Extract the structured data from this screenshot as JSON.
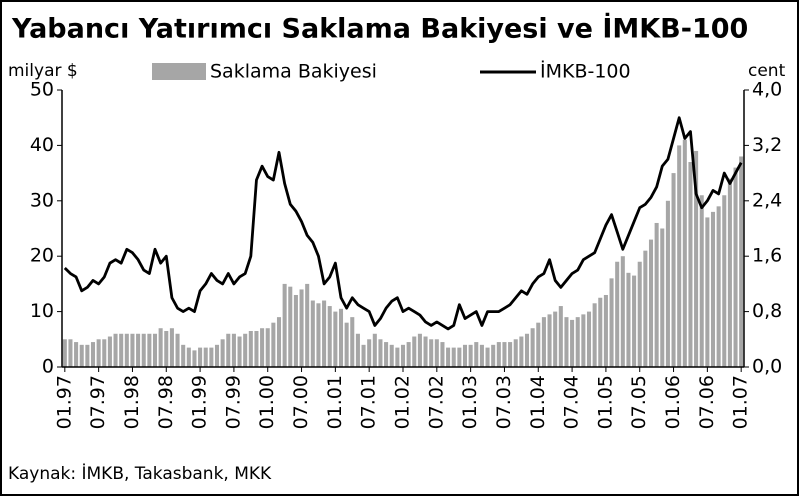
{
  "chart_data": {
    "type": "bar_line",
    "title": "Yabancı Yatırımcı Saklama Bakiyesi ve İMKB-100",
    "y_label": "milyar $",
    "y2_label": "cent",
    "source": "Kaynak: İMKB, Takasbank, MKK",
    "categories": [
      "01.97",
      null,
      null,
      null,
      null,
      null,
      "07.97",
      null,
      null,
      null,
      null,
      null,
      "01.98",
      null,
      null,
      null,
      null,
      null,
      "07.98",
      null,
      null,
      null,
      null,
      null,
      "01.99",
      null,
      null,
      null,
      null,
      null,
      "07.99",
      null,
      null,
      null,
      null,
      null,
      "01.00",
      null,
      null,
      null,
      null,
      null,
      "07.00",
      null,
      null,
      null,
      null,
      null,
      "01.01",
      null,
      null,
      null,
      null,
      null,
      "07.01",
      null,
      null,
      null,
      null,
      null,
      "01.02",
      null,
      null,
      null,
      null,
      null,
      "07.02",
      null,
      null,
      null,
      null,
      null,
      "01.03",
      null,
      null,
      null,
      null,
      null,
      "07.03",
      null,
      null,
      null,
      null,
      null,
      "01.04",
      null,
      null,
      null,
      null,
      null,
      "07.04",
      null,
      null,
      null,
      null,
      null,
      "01.05",
      null,
      null,
      null,
      null,
      null,
      "07.05",
      null,
      null,
      null,
      null,
      null,
      "01.06",
      null,
      null,
      null,
      null,
      null,
      "07.06",
      null,
      null,
      null,
      null,
      null,
      "01.07"
    ],
    "series": [
      {
        "name": "Saklama Bakiyesi",
        "color": "#a6a6a6",
        "values": [
          5,
          5,
          4.5,
          4,
          4,
          4.5,
          5,
          5,
          5.5,
          6,
          6,
          6,
          6,
          6,
          6,
          6,
          6,
          7,
          6.5,
          7,
          6,
          4,
          3.5,
          3,
          3.5,
          3.5,
          3.5,
          4,
          5,
          6,
          6,
          5.5,
          6,
          6.5,
          6.5,
          7,
          7,
          8,
          9,
          15,
          14.5,
          13,
          14,
          15,
          12,
          11.5,
          12,
          11,
          10,
          10.5,
          8,
          9,
          6,
          4,
          5,
          6,
          5,
          4.5,
          4,
          3.5,
          4,
          4.5,
          5.5,
          6,
          5.5,
          5,
          5,
          4.5,
          3.5,
          3.5,
          3.5,
          4,
          4,
          4.5,
          4,
          3.5,
          4,
          4.5,
          4.5,
          4.5,
          5,
          5.5,
          6,
          7,
          8,
          9,
          9.5,
          10,
          11,
          9,
          8.5,
          9,
          9.5,
          10,
          11.5,
          12.5,
          13,
          16,
          19,
          20,
          17,
          16.5,
          19,
          21,
          23,
          26,
          25,
          30,
          35,
          40,
          41,
          37,
          39,
          31,
          27,
          28,
          29,
          31,
          34,
          36,
          38
        ]
      },
      {
        "name": "İMKB-100",
        "color": "#000000",
        "axis": "y2",
        "values": [
          1.43,
          1.35,
          1.3,
          1.1,
          1.15,
          1.25,
          1.2,
          1.3,
          1.5,
          1.55,
          1.5,
          1.7,
          1.65,
          1.55,
          1.4,
          1.35,
          1.7,
          1.5,
          1.6,
          1.0,
          0.85,
          0.8,
          0.85,
          0.8,
          1.1,
          1.2,
          1.35,
          1.25,
          1.2,
          1.35,
          1.2,
          1.3,
          1.35,
          1.6,
          2.7,
          2.9,
          2.75,
          2.7,
          3.1,
          2.65,
          2.35,
          2.25,
          2.1,
          1.9,
          1.8,
          1.6,
          1.2,
          1.3,
          1.5,
          1.0,
          0.85,
          1.0,
          0.9,
          0.85,
          0.8,
          0.6,
          0.7,
          0.85,
          0.95,
          1.0,
          0.8,
          0.85,
          0.8,
          0.75,
          0.65,
          0.6,
          0.65,
          0.6,
          0.55,
          0.6,
          0.9,
          0.7,
          0.75,
          0.8,
          0.6,
          0.8,
          0.8,
          0.8,
          0.85,
          0.9,
          1.0,
          1.1,
          1.05,
          1.2,
          1.3,
          1.35,
          1.55,
          1.25,
          1.15,
          1.25,
          1.35,
          1.4,
          1.55,
          1.6,
          1.65,
          1.85,
          2.05,
          2.2,
          1.95,
          1.7,
          1.9,
          2.1,
          2.3,
          2.35,
          2.45,
          2.6,
          2.9,
          3.0,
          3.3,
          3.6,
          3.3,
          3.4,
          2.5,
          2.3,
          2.4,
          2.55,
          2.5,
          2.8,
          2.65,
          2.8,
          2.95
        ]
      }
    ],
    "ylim": [
      0,
      50
    ],
    "yticks": [
      0,
      10,
      20,
      30,
      40,
      50
    ],
    "y2lim": [
      0,
      4
    ],
    "y2ticks": [
      {
        "value": 0,
        "label": "0,0"
      },
      {
        "value": 0.8,
        "label": "0,8"
      },
      {
        "value": 1.6,
        "label": "1,6"
      },
      {
        "value": 2.4,
        "label": "2,4"
      },
      {
        "value": 3.2,
        "label": "3,2"
      },
      {
        "value": 4,
        "label": "4,0"
      }
    ]
  }
}
